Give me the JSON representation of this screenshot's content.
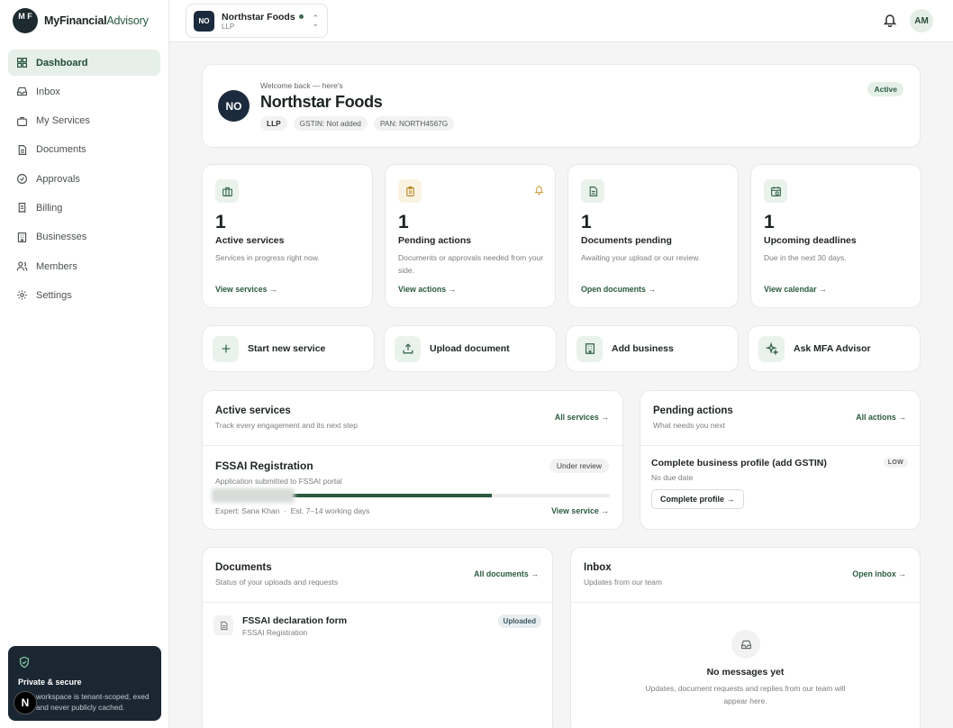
{
  "brand": {
    "logo_text": "M F",
    "name_bold": "MyFinancial",
    "name_rest": "Advisory"
  },
  "sidebar": {
    "items": [
      {
        "label": "Dashboard",
        "icon": "grid-icon"
      },
      {
        "label": "Inbox",
        "icon": "inbox-icon"
      },
      {
        "label": "My Services",
        "icon": "briefcase-icon"
      },
      {
        "label": "Documents",
        "icon": "document-icon"
      },
      {
        "label": "Approvals",
        "icon": "check-circle-icon"
      },
      {
        "label": "Billing",
        "icon": "receipt-icon"
      },
      {
        "label": "Businesses",
        "icon": "building-icon"
      },
      {
        "label": "Members",
        "icon": "users-icon"
      },
      {
        "label": "Settings",
        "icon": "gear-icon"
      }
    ],
    "active_index": 0,
    "secure": {
      "title": "Private & secure",
      "text": "workspace is tenant-scoped, exed and never publicly cached.",
      "badge": "N"
    }
  },
  "topbar": {
    "org": {
      "avatar": "NO",
      "name": "Northstar Foods",
      "type": "LLP"
    },
    "user_initials": "AM"
  },
  "welcome": {
    "avatar": "NO",
    "subtitle": "Welcome back — here's",
    "title": "Northstar Foods",
    "tags": [
      "LLP",
      "GSTIN: Not added",
      "PAN: NORTH4567G"
    ],
    "status": "Active"
  },
  "stats": [
    {
      "num": "1",
      "label": "Active services",
      "desc": "Services in progress right now.",
      "link": "View services →",
      "icon": "briefcase-icon"
    },
    {
      "num": "1",
      "label": "Pending actions",
      "desc": "Documents or approvals needed from your side.",
      "link": "View actions →",
      "icon": "clipboard-icon"
    },
    {
      "num": "1",
      "label": "Documents pending",
      "desc": "Awaiting your upload or our review.",
      "link": "Open documents →",
      "icon": "document-icon"
    },
    {
      "num": "1",
      "label": "Upcoming deadlines",
      "desc": "Due in the next 30 days.",
      "link": "View calendar →",
      "icon": "calendar-icon"
    }
  ],
  "quick_actions": [
    {
      "label": "Start new service",
      "icon": "plus-icon"
    },
    {
      "label": "Upload document",
      "icon": "upload-icon"
    },
    {
      "label": "Add business",
      "icon": "building-icon"
    },
    {
      "label": "Ask MFA Advisor",
      "icon": "sparkle-icon"
    }
  ],
  "active_services": {
    "title": "Active services",
    "subtitle": "Track every engagement and its next step",
    "link": "All services →",
    "item": {
      "name": "FSSAI Registration",
      "desc": "Application submitted to FSSAI portal",
      "status": "Under review",
      "progress": 0.7,
      "expert": "Expert: Sana Khan",
      "separator": "·",
      "eta": "Est. 7–14 working days",
      "link": "View service →"
    }
  },
  "pending_actions": {
    "title": "Pending actions",
    "subtitle": "What needs you next",
    "link": "All actions →",
    "item": {
      "name": "Complete business profile (add GSTIN)",
      "due": "No due date",
      "priority": "LOW",
      "button": "Complete profile →"
    }
  },
  "documents": {
    "title": "Documents",
    "subtitle": "Status of your uploads and requests",
    "link": "All documents →",
    "item": {
      "name": "FSSAI declaration form",
      "sub": "FSSAI Registration",
      "status": "Uploaded"
    }
  },
  "inbox": {
    "title": "Inbox",
    "subtitle": "Updates from our team",
    "link": "Open inbox →",
    "empty_title": "No messages yet",
    "empty_text": "Updates, document requests and replies from our team will appear here."
  }
}
